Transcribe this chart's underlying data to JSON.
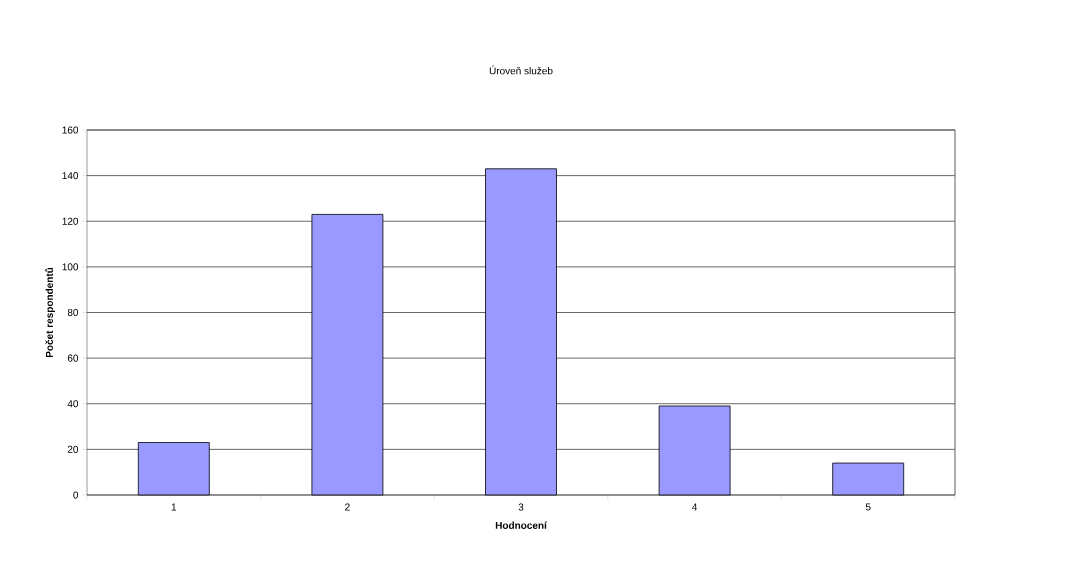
{
  "chart_data": {
    "type": "bar",
    "title": "Úroveň služeb",
    "xlabel": "Hodnocení",
    "ylabel": "Počet respondentů",
    "categories": [
      "1",
      "2",
      "3",
      "4",
      "5"
    ],
    "values": [
      23,
      123,
      143,
      39,
      14
    ],
    "color": "#9999ff",
    "ylim": [
      0,
      160
    ],
    "yticks": [
      0,
      20,
      40,
      60,
      80,
      100,
      120,
      140,
      160
    ],
    "grid": "y"
  }
}
